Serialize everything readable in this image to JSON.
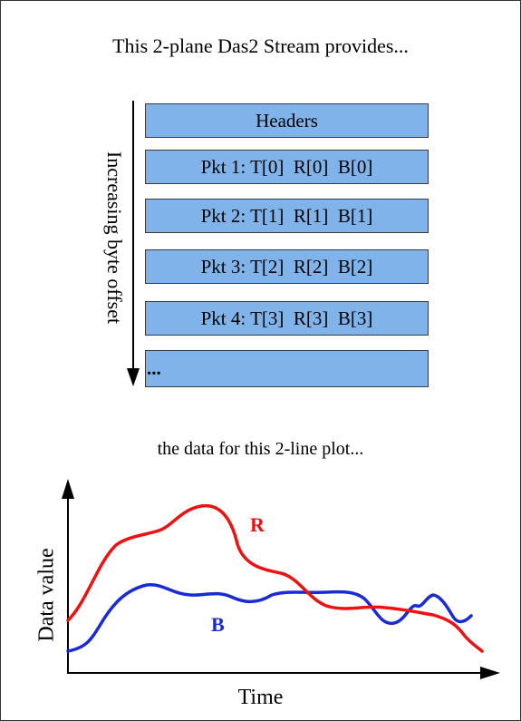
{
  "title": "This 2-plane Das2 Stream provides...",
  "stream": {
    "offset_label": "Increasing byte offset",
    "packets": [
      {
        "label": "Headers"
      },
      {
        "label": "Pkt 1: T[0]  R[0]  B[0]"
      },
      {
        "label": "Pkt 2: T[1]  R[1]  B[1]"
      },
      {
        "label": "Pkt 3: T[2]  R[2]  B[2]"
      },
      {
        "label": "Pkt 4: T[3]  R[3]  B[3]"
      },
      {
        "label": "..."
      }
    ],
    "box_color": "#80b3ea"
  },
  "subtitle": "the data for this 2-line plot...",
  "plot": {
    "ylabel": "Data value",
    "xlabel": "Time",
    "series": [
      {
        "name": "R",
        "color": "#ee1111"
      },
      {
        "name": "B",
        "color": "#1a2ad6"
      }
    ]
  }
}
